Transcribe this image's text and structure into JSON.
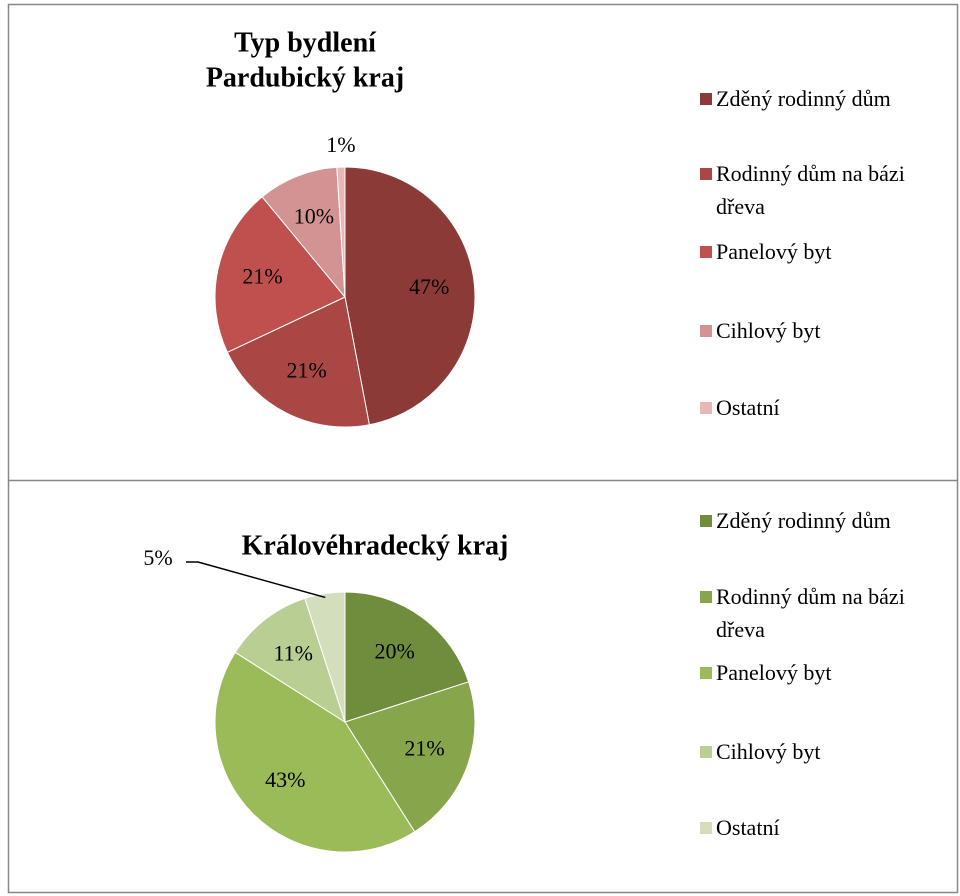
{
  "chart_data": [
    {
      "type": "pie",
      "title": [
        "Typ bydlení",
        "Pardubický kraj"
      ],
      "categories": [
        "Zděný rodinný dům",
        "Rodinný dům na bázi dřeva",
        "Panelový byt",
        "Cihlový byt",
        "Ostatní"
      ],
      "values": [
        47,
        21,
        21,
        10,
        1
      ],
      "value_labels": [
        "47%",
        "21%",
        "21%",
        "10%",
        "1%"
      ],
      "colors": [
        "#8c3a37",
        "#a84744",
        "#c0504d",
        "#d39392",
        "#e6b9b8"
      ]
    },
    {
      "type": "pie",
      "title": [
        "Královéhradecký kraj"
      ],
      "categories": [
        "Zděný rodinný dům",
        "Rodinný dům na bázi dřeva",
        "Panelový byt",
        "Cihlový byt",
        "Ostatní"
      ],
      "values": [
        20,
        21,
        43,
        11,
        5
      ],
      "value_labels": [
        "20%",
        "21%",
        "43%",
        "11%",
        "5%"
      ],
      "colors": [
        "#708d3e",
        "#87a54b",
        "#9bbb59",
        "#b9ce92",
        "#d3dfbc"
      ]
    }
  ]
}
